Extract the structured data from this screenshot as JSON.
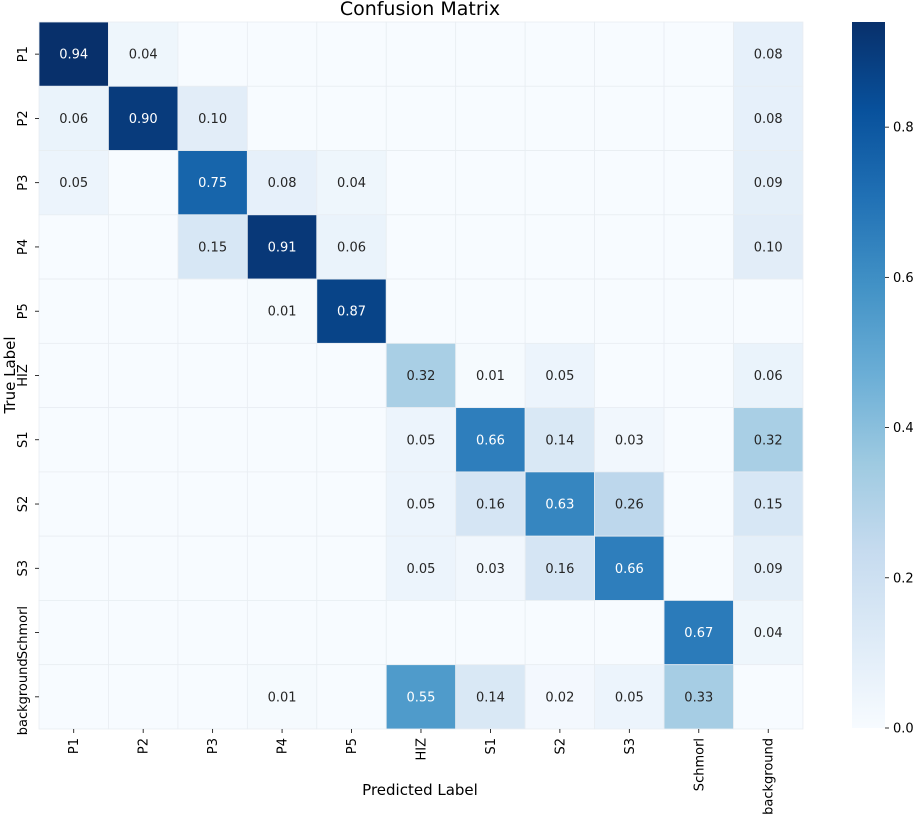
{
  "chart_data": {
    "type": "heatmap",
    "title": "Confusion Matrix",
    "xlabel": "Predicted Label",
    "ylabel": "True Label",
    "x_categories": [
      "P1",
      "P2",
      "P3",
      "P4",
      "P5",
      "HIZ",
      "S1",
      "S2",
      "S3",
      "Schmorl",
      "background"
    ],
    "y_categories": [
      "P1",
      "P2",
      "P3",
      "P4",
      "P5",
      "HIZ",
      "S1",
      "S2",
      "S3",
      "Schmorl",
      "background"
    ],
    "values": [
      [
        0.94,
        0.04,
        0,
        0,
        0,
        0,
        0,
        0,
        0,
        0,
        0.08
      ],
      [
        0.06,
        0.9,
        0.1,
        0,
        0,
        0,
        0,
        0,
        0,
        0,
        0.08
      ],
      [
        0.05,
        0,
        0.75,
        0.08,
        0.04,
        0,
        0,
        0,
        0,
        0,
        0.09
      ],
      [
        0,
        0,
        0.15,
        0.91,
        0.06,
        0,
        0,
        0,
        0,
        0,
        0.1
      ],
      [
        0,
        0,
        0,
        0.01,
        0.87,
        0,
        0,
        0,
        0,
        0,
        0
      ],
      [
        0,
        0,
        0,
        0,
        0,
        0.32,
        0.01,
        0.05,
        0,
        0,
        0.06
      ],
      [
        0,
        0,
        0,
        0,
        0,
        0.05,
        0.66,
        0.14,
        0.03,
        0,
        0.32
      ],
      [
        0,
        0,
        0,
        0,
        0,
        0.05,
        0.16,
        0.63,
        0.26,
        0,
        0.15
      ],
      [
        0,
        0,
        0,
        0,
        0,
        0.05,
        0.03,
        0.16,
        0.66,
        0,
        0.09
      ],
      [
        0,
        0,
        0,
        0,
        0,
        0,
        0,
        0,
        0,
        0.67,
        0.04
      ],
      [
        0,
        0,
        0,
        0.01,
        0,
        0.55,
        0.14,
        0.02,
        0.05,
        0.33,
        0
      ]
    ],
    "colorbar": {
      "range": [
        0,
        0.94
      ],
      "ticks": [
        0.0,
        0.2,
        0.4,
        0.6,
        0.8
      ],
      "tick_labels": [
        "0.0",
        "0.2",
        "0.4",
        "0.6",
        "0.8"
      ],
      "colormap": "Blues"
    }
  }
}
